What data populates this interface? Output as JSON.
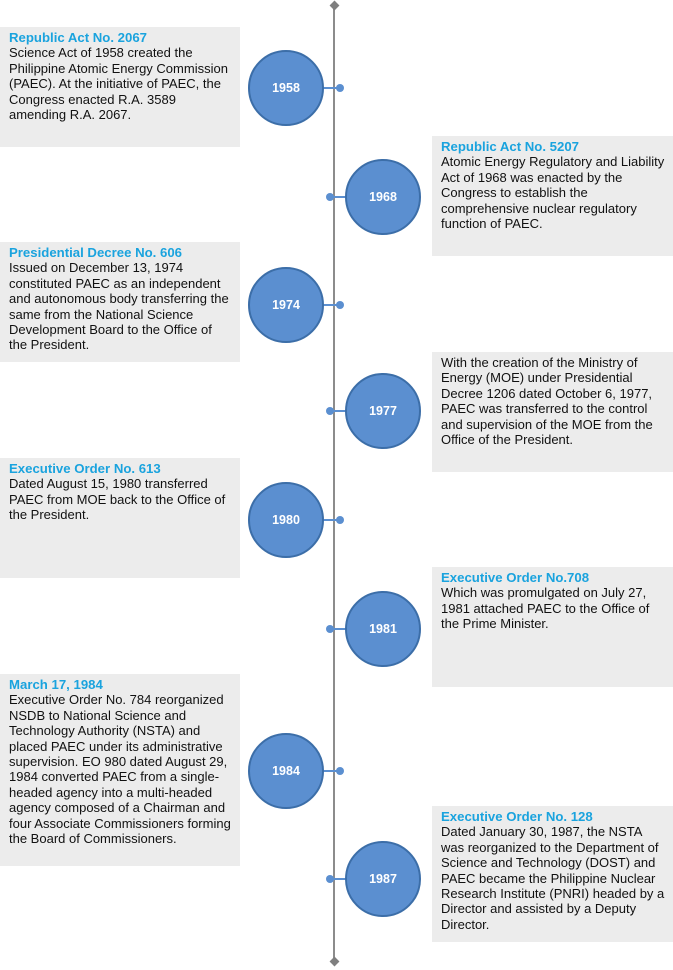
{
  "events": [
    {
      "year": "1958",
      "title": "Republic Act No. 2067",
      "text": "Science Act of 1958 created the Philippine Atomic Energy Commission (PAEC). At the initiative of PAEC, the Congress enacted R.A. 3589 amending R.A. 2067."
    },
    {
      "year": "1968",
      "title": "Republic Act No. 5207",
      "text": "Atomic Energy Regulatory and Liability Act of 1968 was enacted by the Congress to establish the comprehensive nuclear regulatory function of PAEC."
    },
    {
      "year": "1974",
      "title": "Presidential Decree No. 606",
      "text": "Issued on December 13, 1974 constituted PAEC as an independent and autonomous body transferring the same from the National Science Development Board to the Office of the President."
    },
    {
      "year": "1977",
      "title": "",
      "text": "With the creation of the Ministry of Energy (MOE) under Presidential Decree 1206 dated October 6, 1977, PAEC was transferred to the control and supervision of the MOE from the Office of the President."
    },
    {
      "year": "1980",
      "title": "Executive Order No. 613",
      "text": "Dated August 15, 1980 transferred PAEC from MOE back to the Office of the President."
    },
    {
      "year": "1981",
      "title": "Executive Order No.708",
      "text": "Which was promulgated on July 27, 1981 attached PAEC to the Office of the Prime Minister."
    },
    {
      "year": "1984",
      "title": "March 17, 1984",
      "text": "Executive Order No. 784 reorganized NSDB to National Science and Technology Authority (NSTA) and placed PAEC under its administrative supervision. EO 980 dated August 29, 1984 converted PAEC from a single-headed agency into a multi-headed agency composed of a Chairman and four Associate Commissioners forming the Board of Commissioners."
    },
    {
      "year": "1987",
      "title": "Executive Order No. 128",
      "text": "Dated January 30, 1987, the NSTA was reorganized to the Department of Science and Technology (DOST) and PAEC became the Philippine Nuclear Research Institute (PNRI) headed by a Director and assisted by a Deputy Director."
    }
  ],
  "colors": {
    "title": "#1aa3de",
    "node_fill": "#5b8fd0",
    "node_border": "#3c6ea8",
    "box_bg": "#ececec",
    "axis": "#8c8c8c"
  }
}
